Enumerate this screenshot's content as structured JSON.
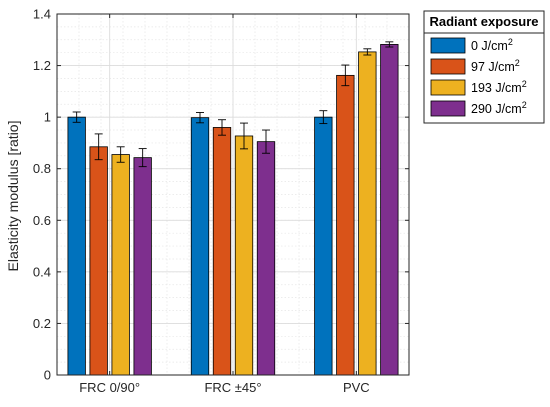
{
  "chart_data": {
    "type": "bar",
    "ylabel": "Elasticity modulus [ratio]",
    "ylim": [
      0,
      1.4
    ],
    "yticks": [
      "0",
      "0.2",
      "0.4",
      "0.6",
      "0.8",
      "1",
      "1.2",
      "1.4"
    ],
    "categories": [
      "FRC 0/90°",
      "FRC ±45°",
      "PVC"
    ],
    "grid": true,
    "legend": {
      "title": "Radiant exposure",
      "placement": "outside-top-right"
    },
    "series": [
      {
        "name": "0 J/cm",
        "sup": "2",
        "color": "#0072BD",
        "values": [
          1.0,
          0.998,
          1.0
        ],
        "errors": [
          0.02,
          0.02,
          0.025
        ]
      },
      {
        "name": "97 J/cm",
        "sup": "2",
        "color": "#D95319",
        "values": [
          0.885,
          0.96,
          1.162
        ],
        "errors": [
          0.05,
          0.03,
          0.04
        ]
      },
      {
        "name": "193 J/cm",
        "sup": "2",
        "color": "#EDB120",
        "values": [
          0.855,
          0.927,
          1.253
        ],
        "errors": [
          0.03,
          0.05,
          0.012
        ]
      },
      {
        "name": "290 J/cm",
        "sup": "2",
        "color": "#7E2F8E",
        "values": [
          0.843,
          0.905,
          1.282
        ],
        "errors": [
          0.035,
          0.045,
          0.01
        ]
      }
    ]
  }
}
